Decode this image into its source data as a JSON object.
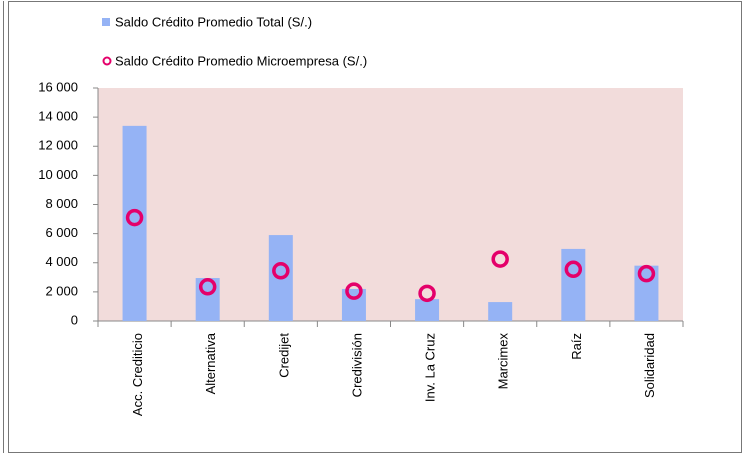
{
  "chart_data": {
    "type": "bar_marker",
    "categories": [
      "Acc. Crediticio",
      "Alternativa",
      "Credijet",
      "Credivisión",
      "Inv. La Cruz",
      "Marcimex",
      "Raíz",
      "Solidaridad"
    ],
    "series": [
      {
        "name": "Saldo Crédito Promedio Total (S/.)",
        "color": "#95b3f5",
        "values": [
          13400,
          2950,
          5900,
          2200,
          1500,
          1300,
          4950,
          3800
        ]
      },
      {
        "name": "Saldo Crédito Promedio Microempresa (S/.)",
        "color": "#e4006a",
        "values": [
          7100,
          2350,
          3450,
          2050,
          1900,
          4250,
          3550,
          3250
        ]
      }
    ],
    "ylim": [
      0,
      16000
    ],
    "yticks": [
      0,
      {
        "value": 2000,
        "label": "2 000"
      },
      {
        "value": 4000,
        "label": "4 000"
      },
      {
        "value": 6000,
        "label": "6 000"
      },
      {
        "value": 8000,
        "label": "8 000"
      },
      {
        "value": 10000,
        "label": "10 000"
      },
      {
        "value": 12000,
        "label": "12 000"
      },
      {
        "value": 14000,
        "label": "14 000"
      },
      {
        "value": 16000,
        "label": "16 000"
      }
    ],
    "plot_background": "#f2dcdb"
  }
}
